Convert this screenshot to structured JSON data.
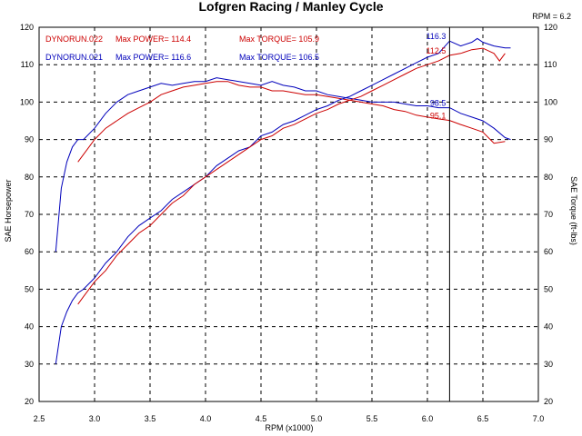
{
  "chart_data": {
    "type": "line",
    "title": "Lofgren Racing / Manley Cycle",
    "xlabel": "RPM (x1000)",
    "ylabel_left": "SAE Horsepower",
    "ylabel_right": "SAE Torque (ft-lbs)",
    "xlim": [
      2.5,
      7.0
    ],
    "ylim": [
      20,
      120
    ],
    "xticks": [
      "2.5",
      "3.0",
      "3.5",
      "4.0",
      "4.5",
      "5.0",
      "5.5",
      "6.0",
      "6.5",
      "7.0"
    ],
    "yticks": [
      "20",
      "30",
      "40",
      "50",
      "60",
      "70",
      "80",
      "90",
      "100",
      "110",
      "120"
    ],
    "grid": true,
    "cursor": {
      "label": "RPM = 6.2",
      "x": 6.2
    },
    "legend": [
      {
        "run": "DYNORUN.022",
        "power": "Max POWER= 114.4",
        "torque": "Max TORQUE= 105.9",
        "color": "#cc0000"
      },
      {
        "run": "DYNORUN.021",
        "power": "Max POWER= 116.6",
        "torque": "Max TORQUE= 106.5",
        "color": "#0000bb"
      }
    ],
    "cursor_values": [
      {
        "label": "116.3",
        "x": 6.2,
        "y": 116.3,
        "color": "#0000bb"
      },
      {
        "label": "112.5",
        "x": 6.2,
        "y": 112.5,
        "color": "#cc0000"
      },
      {
        "label": "98.5",
        "x": 6.2,
        "y": 98.5,
        "color": "#0000bb"
      },
      {
        "label": "95.1",
        "x": 6.2,
        "y": 95.1,
        "color": "#cc0000"
      }
    ],
    "series": [
      {
        "kind": "torque",
        "color": "#0000bb",
        "x": [
          2.65,
          2.7,
          2.75,
          2.8,
          2.85,
          2.9,
          3.0,
          3.1,
          3.2,
          3.3,
          3.4,
          3.5,
          3.6,
          3.7,
          3.8,
          3.9,
          4.0,
          4.1,
          4.2,
          4.3,
          4.4,
          4.5,
          4.6,
          4.7,
          4.8,
          4.9,
          5.0,
          5.1,
          5.2,
          5.3,
          5.4,
          5.5,
          5.6,
          5.7,
          5.8,
          5.9,
          6.0,
          6.1,
          6.2,
          6.3,
          6.4,
          6.5,
          6.6,
          6.7,
          6.75
        ],
        "y": [
          60,
          77,
          84,
          88,
          90,
          90,
          93,
          97,
          100,
          102,
          103,
          104,
          105,
          104.5,
          105,
          105.5,
          105.5,
          106.5,
          106,
          105.5,
          105,
          104.5,
          105.5,
          104.5,
          104,
          103,
          103,
          102,
          101.5,
          101,
          100.5,
          100,
          100,
          100,
          99.5,
          99,
          99,
          98.5,
          98.5,
          97,
          96,
          95,
          93,
          90.5,
          90
        ]
      },
      {
        "kind": "torque",
        "color": "#cc0000",
        "x": [
          2.85,
          2.9,
          3.0,
          3.1,
          3.2,
          3.3,
          3.4,
          3.5,
          3.6,
          3.7,
          3.8,
          3.9,
          4.0,
          4.1,
          4.2,
          4.3,
          4.4,
          4.5,
          4.6,
          4.7,
          4.8,
          4.9,
          5.0,
          5.1,
          5.2,
          5.3,
          5.4,
          5.5,
          5.6,
          5.7,
          5.8,
          5.9,
          6.0,
          6.1,
          6.2,
          6.3,
          6.4,
          6.5,
          6.6,
          6.7
        ],
        "y": [
          84,
          86,
          90,
          93,
          95,
          97,
          98.5,
          100,
          102,
          103,
          104,
          104.5,
          105,
          105.5,
          105.5,
          104.5,
          104,
          104,
          103,
          103,
          102.5,
          102,
          102,
          101.5,
          101,
          100.5,
          100,
          99.5,
          99,
          98,
          97.5,
          96.5,
          96,
          95.5,
          95.1,
          94,
          93,
          92,
          89,
          89.5
        ]
      },
      {
        "kind": "power",
        "color": "#0000bb",
        "x": [
          2.65,
          2.7,
          2.75,
          2.8,
          2.85,
          2.9,
          3.0,
          3.1,
          3.2,
          3.3,
          3.4,
          3.5,
          3.6,
          3.7,
          3.8,
          3.9,
          4.0,
          4.1,
          4.2,
          4.3,
          4.4,
          4.5,
          4.6,
          4.7,
          4.8,
          4.9,
          5.0,
          5.1,
          5.2,
          5.3,
          5.4,
          5.5,
          5.6,
          5.7,
          5.8,
          5.9,
          6.0,
          6.1,
          6.2,
          6.3,
          6.4,
          6.45,
          6.5,
          6.6,
          6.7,
          6.75
        ],
        "y": [
          30,
          40,
          44,
          47,
          49,
          50,
          53,
          57,
          60,
          64,
          67,
          69,
          71,
          74,
          76,
          78,
          80,
          83,
          85,
          87,
          88,
          91,
          92,
          94,
          95,
          96.5,
          98,
          99,
          100.5,
          101.5,
          103,
          104.5,
          106,
          107.5,
          109,
          110.5,
          112,
          113,
          116.3,
          115,
          116,
          117,
          116,
          115,
          114.5,
          114.5
        ]
      },
      {
        "kind": "power",
        "color": "#cc0000",
        "x": [
          2.85,
          2.9,
          3.0,
          3.1,
          3.2,
          3.3,
          3.4,
          3.5,
          3.6,
          3.7,
          3.8,
          3.9,
          4.0,
          4.1,
          4.2,
          4.3,
          4.4,
          4.5,
          4.6,
          4.7,
          4.8,
          4.9,
          5.0,
          5.1,
          5.2,
          5.3,
          5.4,
          5.5,
          5.6,
          5.7,
          5.8,
          5.9,
          6.0,
          6.1,
          6.2,
          6.3,
          6.4,
          6.5,
          6.6,
          6.65,
          6.7
        ],
        "y": [
          46,
          48,
          52,
          55,
          59,
          62,
          65,
          67,
          70,
          73,
          75,
          78,
          80,
          82,
          84,
          86,
          88,
          90,
          91,
          93,
          94,
          95.5,
          97,
          98,
          99.5,
          100.5,
          101.5,
          103,
          104.5,
          106,
          107.5,
          109,
          110,
          111,
          112.5,
          113,
          114,
          114.4,
          113,
          111,
          113
        ]
      }
    ]
  }
}
